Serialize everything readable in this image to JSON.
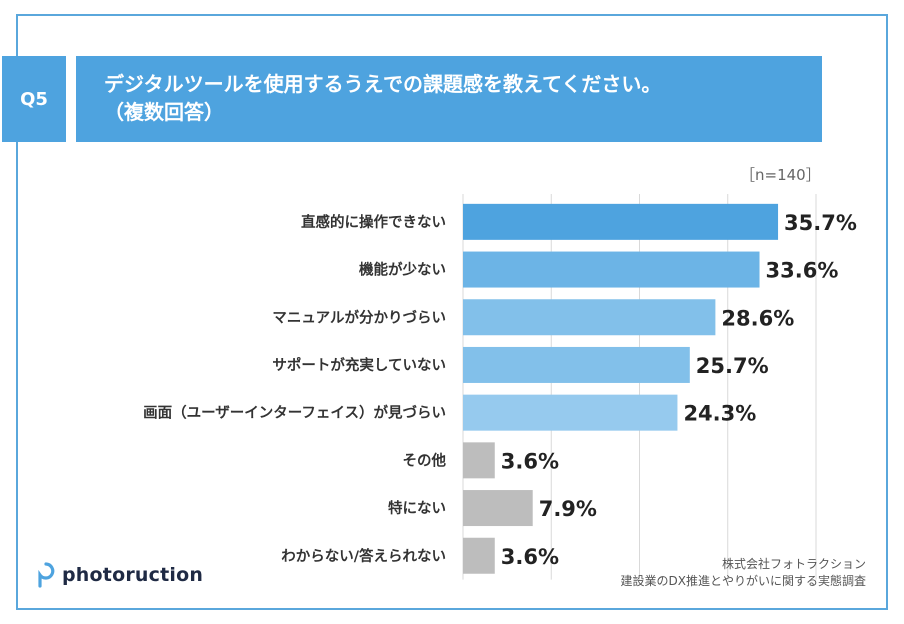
{
  "header": {
    "q_label": "Q5",
    "question_line1": "デジタルツールを使用するうえでの課題感を教えてください。",
    "question_line2": "（複数回答）"
  },
  "sample_label": "［n=140］",
  "chart_data": {
    "type": "bar",
    "orientation": "horizontal",
    "categories": [
      "直感的に操作できない",
      "機能が少ない",
      "マニュアルが分かりづらい",
      "サポートが充実していない",
      "画面（ユーザーインターフェイス）が見づらい",
      "その他",
      "特にない",
      "わからない/答えられない"
    ],
    "values": [
      35.7,
      33.6,
      28.6,
      25.7,
      24.3,
      3.6,
      7.9,
      3.6
    ],
    "value_labels": [
      "35.7%",
      "33.6%",
      "28.6%",
      "25.7%",
      "24.3%",
      "3.6%",
      "7.9%",
      "3.6%"
    ],
    "colors": [
      "#4ea3df",
      "#6cb4e6",
      "#82c0ea",
      "#82c0ea",
      "#96caee",
      "#bdbdbd",
      "#bdbdbd",
      "#bdbdbd"
    ],
    "xlim": [
      0,
      40
    ],
    "grid": true
  },
  "logo": {
    "text": "photoruction",
    "icon": "photoruction-logo-icon"
  },
  "source": {
    "line1": "株式会社フォトラクション",
    "line2": "建設業のDX推進とやりがいに関する実態調査"
  }
}
